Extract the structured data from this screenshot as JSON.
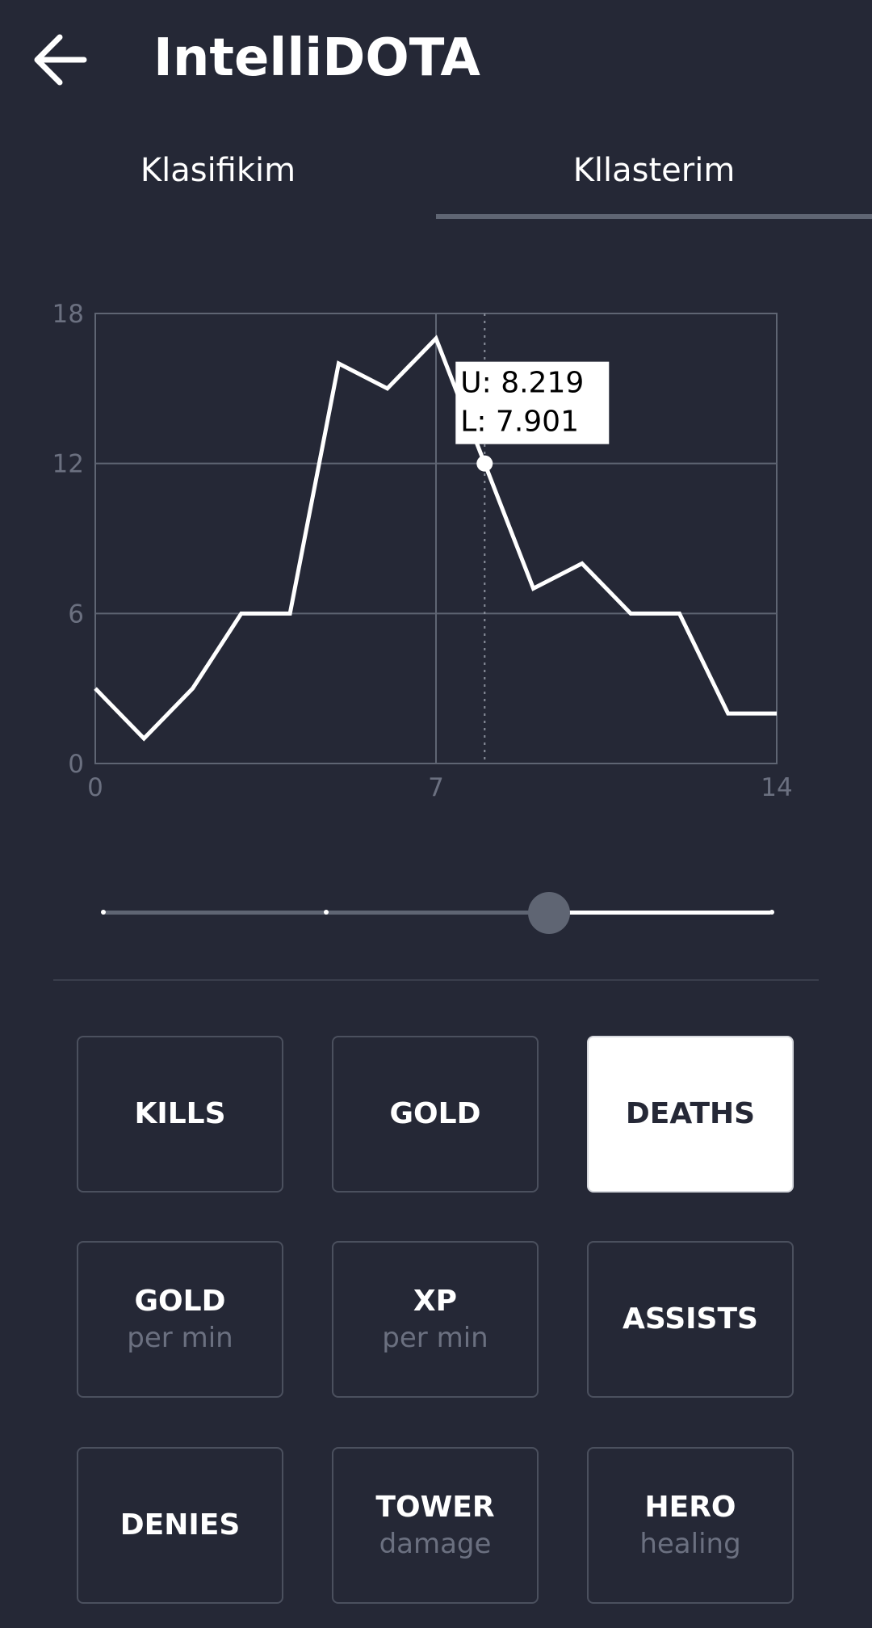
{
  "header": {
    "title": "IntelliDOTA",
    "back_icon": "arrow-left-icon"
  },
  "tabs": [
    {
      "label": "Klasifikim",
      "active": false
    },
    {
      "label": "Kllasterim",
      "active": true
    }
  ],
  "chart_data": {
    "type": "line",
    "x": [
      0,
      1,
      2,
      3,
      4,
      5,
      6,
      7,
      8,
      9,
      10,
      11,
      12,
      13,
      14
    ],
    "values": [
      3,
      1,
      3,
      6,
      6,
      16,
      15,
      17,
      12,
      7,
      8,
      6,
      6,
      2,
      2
    ],
    "xlim": [
      0,
      14
    ],
    "ylim": [
      0,
      18
    ],
    "x_ticks": [
      "0",
      "7",
      "14"
    ],
    "y_ticks": [
      "0",
      "6",
      "12",
      "18"
    ],
    "grid": true,
    "cursor_x": 8,
    "tooltip": {
      "line1": "U: 8.219",
      "line2": "L: 7.901"
    },
    "colors": {
      "line": "#ffffff",
      "grid": "#5f6573",
      "tick_text": "#6b7080",
      "tooltip_bg": "#ffffff",
      "tooltip_text": "#000000"
    }
  },
  "slider": {
    "value_fraction": 0.667,
    "ticks": [
      0,
      0.333,
      1.0
    ]
  },
  "stats": [
    {
      "label": "KILLS",
      "sub": "",
      "selected": false
    },
    {
      "label": "GOLD",
      "sub": "",
      "selected": false
    },
    {
      "label": "DEATHS",
      "sub": "",
      "selected": true
    },
    {
      "label": "GOLD",
      "sub": "per min",
      "selected": false
    },
    {
      "label": "XP",
      "sub": "per min",
      "selected": false
    },
    {
      "label": "ASSISTS",
      "sub": "",
      "selected": false
    },
    {
      "label": "DENIES",
      "sub": "",
      "selected": false
    },
    {
      "label": "TOWER",
      "sub": "damage",
      "selected": false
    },
    {
      "label": "HERO",
      "sub": "healing",
      "selected": false
    }
  ],
  "colors": {
    "background": "#252836",
    "accent": "#ffffff",
    "muted": "#5f6573"
  }
}
